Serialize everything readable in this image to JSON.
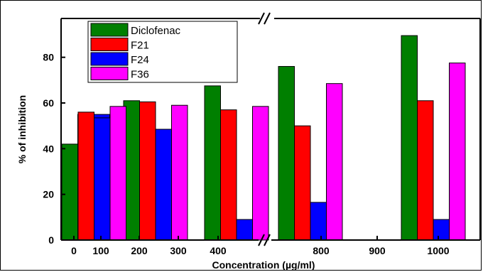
{
  "chart_data": {
    "type": "bar",
    "title": "",
    "xlabel": "Concentration (µg/ml)",
    "ylabel": "% of inhibition",
    "ylim": [
      0,
      97
    ],
    "yticks": [
      0,
      20,
      40,
      60,
      80
    ],
    "axis_break": true,
    "legend_position": "top-left",
    "xticks_left": [
      "0",
      "100",
      "200",
      "300",
      "400"
    ],
    "xticks_right": [
      "800",
      "900",
      "1000"
    ],
    "categories": [
      "100",
      "200",
      "400",
      "800",
      "1000"
    ],
    "series": [
      {
        "name": "Diclofenac",
        "color": "#007f00",
        "values": [
          42,
          61,
          67.5,
          76,
          89.5
        ]
      },
      {
        "name": "F21",
        "color": "#ff0000",
        "values": [
          55,
          60.5,
          57,
          50,
          61
        ]
      },
      {
        "name": "F24",
        "color": "#0000ff",
        "values": [
          55,
          48.5,
          9,
          16.5,
          9
        ]
      },
      {
        "name": "F36",
        "color": "#ff00ff",
        "values": [
          49.5,
          59,
          58.5,
          68.5,
          77.5
        ]
      }
    ],
    "overlay_pair": {
      "category": "100",
      "values": {
        "F21": 56,
        "F24": 53.5,
        "F36": 58.5
      }
    }
  }
}
